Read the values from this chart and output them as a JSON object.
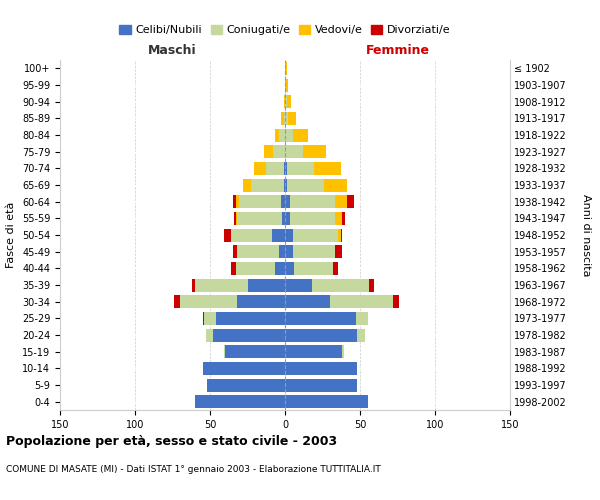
{
  "age_groups": [
    "0-4",
    "5-9",
    "10-14",
    "15-19",
    "20-24",
    "25-29",
    "30-34",
    "35-39",
    "40-44",
    "45-49",
    "50-54",
    "55-59",
    "60-64",
    "65-69",
    "70-74",
    "75-79",
    "80-84",
    "85-89",
    "90-94",
    "95-99",
    "100+"
  ],
  "birth_years": [
    "1998-2002",
    "1993-1997",
    "1988-1992",
    "1983-1987",
    "1978-1982",
    "1973-1977",
    "1968-1972",
    "1963-1967",
    "1958-1962",
    "1953-1957",
    "1948-1952",
    "1943-1947",
    "1938-1942",
    "1933-1937",
    "1928-1932",
    "1923-1927",
    "1918-1922",
    "1913-1917",
    "1908-1912",
    "1903-1907",
    "≤ 1902"
  ],
  "male_celibi": [
    60,
    52,
    55,
    40,
    48,
    46,
    32,
    25,
    7,
    4,
    9,
    2,
    3,
    1,
    1,
    0,
    0,
    0,
    0,
    0,
    0
  ],
  "male_coniugati": [
    0,
    0,
    0,
    1,
    5,
    8,
    38,
    35,
    26,
    28,
    27,
    30,
    28,
    22,
    12,
    8,
    4,
    1,
    0,
    0,
    0
  ],
  "male_vedovi": [
    0,
    0,
    0,
    0,
    0,
    0,
    0,
    0,
    0,
    0,
    0,
    1,
    2,
    5,
    8,
    6,
    3,
    2,
    1,
    0,
    0
  ],
  "male_divorziati": [
    0,
    0,
    0,
    0,
    0,
    1,
    4,
    2,
    3,
    3,
    5,
    1,
    2,
    0,
    0,
    0,
    0,
    0,
    0,
    0,
    0
  ],
  "female_celibi": [
    55,
    48,
    48,
    38,
    48,
    47,
    30,
    18,
    6,
    5,
    5,
    3,
    3,
    1,
    1,
    0,
    0,
    0,
    0,
    0,
    0
  ],
  "female_coniugati": [
    0,
    0,
    0,
    1,
    5,
    8,
    42,
    38,
    26,
    28,
    30,
    30,
    30,
    25,
    18,
    12,
    5,
    2,
    1,
    0,
    0
  ],
  "female_vedovi": [
    0,
    0,
    0,
    0,
    0,
    0,
    0,
    0,
    0,
    0,
    2,
    5,
    8,
    15,
    18,
    15,
    10,
    5,
    3,
    2,
    1
  ],
  "female_divorziati": [
    0,
    0,
    0,
    0,
    0,
    0,
    4,
    3,
    3,
    5,
    1,
    2,
    5,
    0,
    0,
    0,
    0,
    0,
    0,
    0,
    0
  ],
  "color_celibi": "#4472c4",
  "color_coniugati": "#c5d89d",
  "color_vedovi": "#ffc000",
  "color_divorziati": "#cc0000",
  "xlim": 150,
  "title": "Popolazione per età, sesso e stato civile - 2003",
  "subtitle": "COMUNE DI MASATE (MI) - Dati ISTAT 1° gennaio 2003 - Elaborazione TUTTITALIA.IT",
  "ylabel_left": "Fasce di età",
  "ylabel_right": "Anni di nascita",
  "label_maschi": "Maschi",
  "label_femmine": "Femmine"
}
